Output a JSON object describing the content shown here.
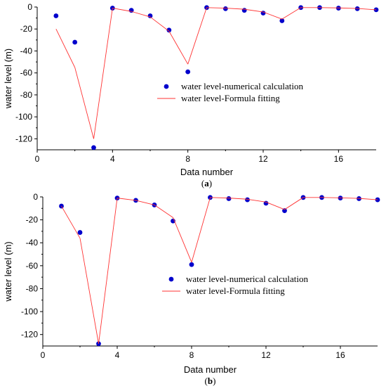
{
  "chart_data": [
    {
      "type": "scatter",
      "panel_label": "(a)",
      "panel_letter": "a",
      "xlabel": "Data number",
      "ylabel": "water level (m)",
      "xlim": [
        0,
        18
      ],
      "ylim": [
        -130,
        0
      ],
      "xticks": [
        0,
        4,
        8,
        12,
        16
      ],
      "yticks": [
        0,
        -20,
        -40,
        -60,
        -80,
        -100,
        -120
      ],
      "legend_position": "center-right",
      "series": [
        {
          "name": "water level-numerical calculation",
          "kind": "points",
          "color": "#0000cc",
          "x": [
            1,
            2,
            3,
            4,
            5,
            6,
            7,
            8,
            9,
            10,
            11,
            12,
            13,
            14,
            15,
            16,
            17,
            18
          ],
          "y": [
            -8,
            -32,
            -128,
            -1,
            -3,
            -8,
            -21,
            -59,
            -0.5,
            -1.5,
            -3,
            -5.5,
            -12.5,
            -0.5,
            -0.5,
            -1,
            -1.5,
            -2.5
          ]
        },
        {
          "name": "water level-Formula fitting",
          "kind": "line",
          "color": "#ff3333",
          "x": [
            1,
            2,
            3,
            4,
            5,
            6,
            7,
            8,
            9,
            10,
            11,
            12,
            13,
            14,
            15,
            16,
            17,
            18
          ],
          "y": [
            -20,
            -55,
            -120,
            -1,
            -4,
            -9,
            -22,
            -52,
            -0.5,
            -1,
            -2,
            -4.5,
            -11,
            -0.5,
            -0.5,
            -0.8,
            -1.3,
            -2.5
          ]
        }
      ]
    },
    {
      "type": "scatter",
      "panel_label": "(b)",
      "panel_letter": "b",
      "xlabel": "Data number",
      "ylabel": "water level (m)",
      "xlim": [
        0,
        18
      ],
      "ylim": [
        -130,
        0
      ],
      "xticks": [
        0,
        4,
        8,
        12,
        16
      ],
      "yticks": [
        0,
        -20,
        -40,
        -60,
        -80,
        -100,
        -120
      ],
      "legend_position": "center-right",
      "series": [
        {
          "name": "water level-numerical calculation",
          "kind": "points",
          "color": "#0000cc",
          "x": [
            1,
            2,
            3,
            4,
            5,
            6,
            7,
            8,
            9,
            10,
            11,
            12,
            13,
            14,
            15,
            16,
            17,
            18
          ],
          "y": [
            -8,
            -31,
            -128,
            -1,
            -3,
            -7,
            -21,
            -59,
            -0.5,
            -1.5,
            -2.5,
            -5.5,
            -12,
            -0.5,
            -0.5,
            -1,
            -1.5,
            -2.5
          ]
        },
        {
          "name": "water level-Formula fitting",
          "kind": "line",
          "color": "#ff3333",
          "x": [
            1,
            2,
            3,
            4,
            5,
            6,
            7,
            8,
            9,
            10,
            11,
            12,
            13,
            14,
            15,
            16,
            17,
            18
          ],
          "y": [
            -8,
            -36,
            -128,
            -1,
            -3,
            -7,
            -18,
            -57,
            -0.5,
            -1,
            -2,
            -4.5,
            -11,
            -0.5,
            -0.5,
            -0.8,
            -1.3,
            -2.5
          ]
        }
      ]
    }
  ]
}
